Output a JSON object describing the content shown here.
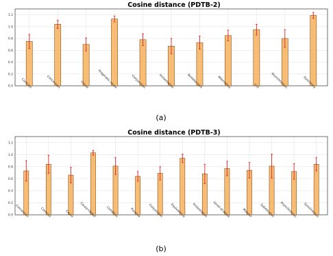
{
  "chart_data": [
    {
      "type": "bar",
      "title": "Cosine distance (PDTB-2)",
      "caption": "(a)",
      "ylim": [
        0,
        1.3
      ],
      "yticks": [
        "0.0",
        "0.2",
        "0.4",
        "0.6",
        "0.8",
        "1.0",
        "1.2"
      ],
      "grid": true,
      "categories": [
        "Contrast",
        "Concession",
        "Cause",
        "Pragmatic cause",
        "Conjunction",
        "Instantiation",
        "Restatement",
        "Alternative",
        "List",
        "Asynchronous",
        "Synchrony"
      ],
      "values": [
        0.75,
        1.04,
        0.7,
        1.13,
        0.78,
        0.67,
        0.73,
        0.85,
        0.95,
        0.8,
        1.19
      ],
      "errors": [
        0.12,
        0.07,
        0.11,
        0.05,
        0.1,
        0.13,
        0.11,
        0.09,
        0.09,
        0.15,
        0.05
      ]
    },
    {
      "type": "bar",
      "title": "Cosine distance  (PDTB-3)",
      "caption": "(b)",
      "ylim": [
        0,
        1.3
      ],
      "yticks": [
        "0.0",
        "0.2",
        "0.4",
        "0.6",
        "0.8",
        "1.0",
        "1.2"
      ],
      "grid": true,
      "categories": [
        "Concession",
        "Contrast",
        "Cause",
        "Cause+Belief",
        "Condition",
        "Purpose",
        "Conjunction",
        "Equivalence",
        "Instantiation",
        "Level-of-detail",
        "Manner",
        "Substitution",
        "Asynchronous",
        "Synchronous"
      ],
      "values": [
        0.73,
        0.84,
        0.66,
        1.03,
        0.81,
        0.64,
        0.69,
        0.94,
        0.68,
        0.77,
        0.74,
        0.81,
        0.72,
        0.84
      ],
      "errors": [
        0.17,
        0.15,
        0.13,
        0.04,
        0.14,
        0.08,
        0.11,
        0.07,
        0.16,
        0.12,
        0.13,
        0.2,
        0.13,
        0.11
      ]
    }
  ],
  "colors": {
    "bar_fill": "#f8bd74",
    "bar_edge": "#8a4b18",
    "error_bar": "#e0202a",
    "grid": "#e3e3e3"
  }
}
